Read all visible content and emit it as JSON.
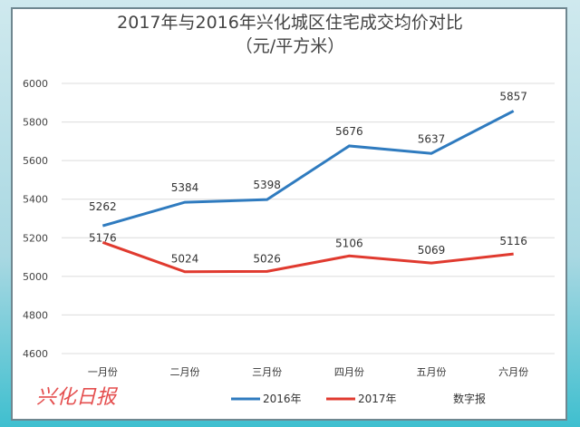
{
  "chart_data": {
    "type": "line",
    "title": "2017年与2016年兴化城区住宅成交均价对比",
    "subtitle": "（元/平方米）",
    "categories": [
      "一月份",
      "二月份",
      "三月份",
      "四月份",
      "五月份",
      "六月份"
    ],
    "series": [
      {
        "name": "2016年",
        "color": "#2f7bbf",
        "values": [
          5262,
          5384,
          5398,
          5676,
          5637,
          5857
        ]
      },
      {
        "name": "2017年",
        "color": "#e03a2f",
        "values": [
          5176,
          5024,
          5026,
          5106,
          5069,
          5116
        ]
      }
    ],
    "yticks": [
      4600,
      4800,
      5000,
      5200,
      5400,
      5600,
      5800,
      6000
    ],
    "ylim": [
      4600,
      6000
    ],
    "grid": true,
    "legend": "bottom"
  },
  "watermark": {
    "logo": "兴化日报",
    "text": "数字报"
  }
}
